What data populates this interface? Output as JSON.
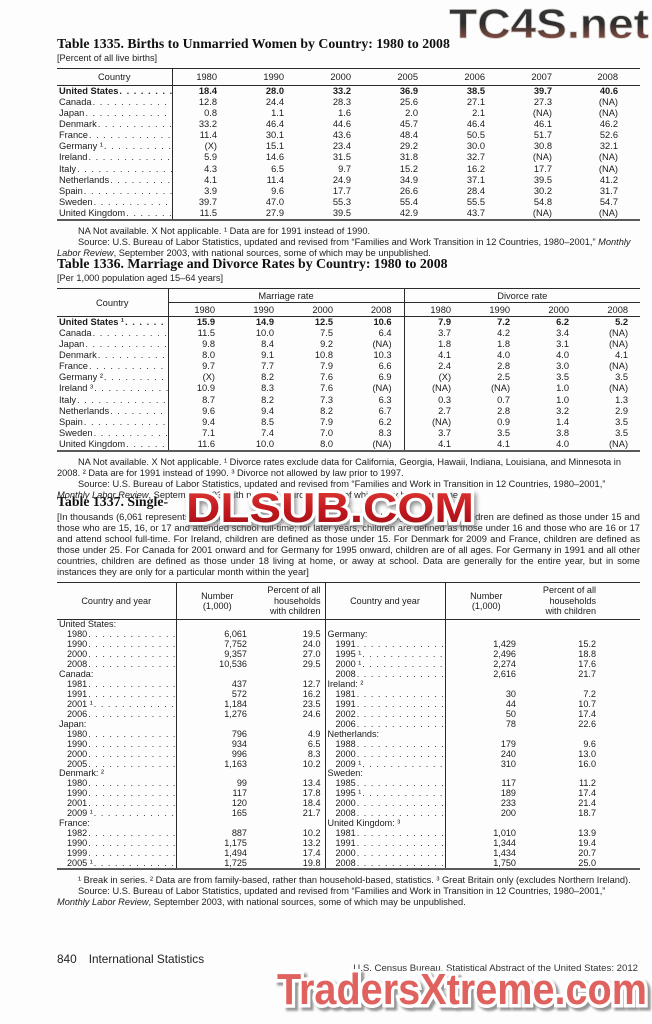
{
  "watermarks": {
    "top": "TC4S.net",
    "middle": "DLSUB.COM",
    "bottom": "TradersXtreme.com"
  },
  "footer": {
    "page_number": "840",
    "section": "International Statistics",
    "source_line": "U.S. Census Bureau, Statistical Abstract of the United States: 2012"
  },
  "table1335": {
    "title": "Table 1335. Births to Unmarried Women by Country: 1980 to 2008",
    "bracket": "[Percent of all live births]",
    "country_header": "Country",
    "years": [
      "1980",
      "1990",
      "2000",
      "2005",
      "2006",
      "2007",
      "2008"
    ],
    "rows": [
      {
        "country": "United States",
        "bold": true,
        "values": [
          "18.4",
          "28.0",
          "33.2",
          "36.9",
          "38.5",
          "39.7",
          "40.6"
        ]
      },
      {
        "country": "Canada",
        "values": [
          "12.8",
          "24.4",
          "28.3",
          "25.6",
          "27.1",
          "27.3",
          "(NA)"
        ]
      },
      {
        "country": "Japan",
        "values": [
          "0.8",
          "1.1",
          "1.6",
          "2.0",
          "2.1",
          "(NA)",
          "(NA)"
        ]
      },
      {
        "country": "Denmark",
        "values": [
          "33.2",
          "46.4",
          "44.6",
          "45.7",
          "46.4",
          "46.1",
          "46.2"
        ]
      },
      {
        "country": "France",
        "values": [
          "11.4",
          "30.1",
          "43.6",
          "48.4",
          "50.5",
          "51.7",
          "52.6"
        ]
      },
      {
        "country": "Germany ¹",
        "values": [
          "(X)",
          "15.1",
          "23.4",
          "29.2",
          "30.0",
          "30.8",
          "32.1"
        ]
      },
      {
        "country": "Ireland",
        "values": [
          "5.9",
          "14.6",
          "31.5",
          "31.8",
          "32.7",
          "(NA)",
          "(NA)"
        ]
      },
      {
        "country": "Italy",
        "values": [
          "4.3",
          "6.5",
          "9.7",
          "15.2",
          "16.2",
          "17.7",
          "(NA)"
        ]
      },
      {
        "country": "Netherlands",
        "values": [
          "4.1",
          "11.4",
          "24.9",
          "34.9",
          "37.1",
          "39.5",
          "41.2"
        ]
      },
      {
        "country": "Spain",
        "values": [
          "3.9",
          "9.6",
          "17.7",
          "26.6",
          "28.4",
          "30.2",
          "31.7"
        ]
      },
      {
        "country": "Sweden",
        "values": [
          "39.7",
          "47.0",
          "55.3",
          "55.4",
          "55.5",
          "54.8",
          "54.7"
        ]
      },
      {
        "country": "United Kingdom",
        "values": [
          "11.5",
          "27.9",
          "39.5",
          "42.9",
          "43.7",
          "(NA)",
          "(NA)"
        ]
      }
    ],
    "note1": [
      {
        "t": "NA Not available. X Not applicable. ¹ Data are for 1991 instead of 1990."
      }
    ],
    "note2": [
      {
        "t": "Source: U.S. Bureau of Labor Statistics, updated and revised from “Families and Work Transition in 12 Countries, 1980–2001,” "
      },
      {
        "t": "Monthly Labor Review",
        "i": true
      },
      {
        "t": ", September 2003, with national sources, some of which may be unpublished."
      }
    ]
  },
  "table1336": {
    "title": "Table 1336. Marriage and Divorce Rates by Country: 1980 to 2008",
    "bracket": "[Per 1,000 population aged 15–64 years]",
    "country_header": "Country",
    "group1": "Marriage rate",
    "group2": "Divorce rate",
    "years": [
      "1980",
      "1990",
      "2000",
      "2008"
    ],
    "rows": [
      {
        "country": "United States ¹",
        "bold": true,
        "marriage": [
          "15.9",
          "14.9",
          "12.5",
          "10.6"
        ],
        "divorce": [
          "7.9",
          "7.2",
          "6.2",
          "5.2"
        ]
      },
      {
        "country": "Canada",
        "marriage": [
          "11.5",
          "10.0",
          "7.5",
          "6.4"
        ],
        "divorce": [
          "3.7",
          "4.2",
          "3.4",
          "(NA)"
        ]
      },
      {
        "country": "Japan",
        "marriage": [
          "9.8",
          "8.4",
          "9.2",
          "(NA)"
        ],
        "divorce": [
          "1.8",
          "1.8",
          "3.1",
          "(NA)"
        ]
      },
      {
        "country": "Denmark",
        "marriage": [
          "8.0",
          "9.1",
          "10.8",
          "10.3"
        ],
        "divorce": [
          "4.1",
          "4.0",
          "4.0",
          "4.1"
        ]
      },
      {
        "country": "France",
        "marriage": [
          "9.7",
          "7.7",
          "7.9",
          "6.6"
        ],
        "divorce": [
          "2.4",
          "2.8",
          "3.0",
          "(NA)"
        ]
      },
      {
        "country": "Germany ²",
        "marriage": [
          "(X)",
          "8.2",
          "7.6",
          "6.9"
        ],
        "divorce": [
          "(X)",
          "2.5",
          "3.5",
          "3.5"
        ]
      },
      {
        "country": "Ireland ³",
        "marriage": [
          "10.9",
          "8.3",
          "7.6",
          "(NA)"
        ],
        "divorce": [
          "(NA)",
          "(NA)",
          "1.0",
          "(NA)"
        ]
      },
      {
        "country": "Italy",
        "marriage": [
          "8.7",
          "8.2",
          "7.3",
          "6.3"
        ],
        "divorce": [
          "0.3",
          "0.7",
          "1.0",
          "1.3"
        ]
      },
      {
        "country": "Netherlands",
        "marriage": [
          "9.6",
          "9.4",
          "8.2",
          "6.7"
        ],
        "divorce": [
          "2.7",
          "2.8",
          "3.2",
          "2.9"
        ]
      },
      {
        "country": "Spain",
        "marriage": [
          "9.4",
          "8.5",
          "7.9",
          "6.2"
        ],
        "divorce": [
          "(NA)",
          "0.9",
          "1.4",
          "3.5"
        ]
      },
      {
        "country": "Sweden",
        "marriage": [
          "7.1",
          "7.4",
          "7.0",
          "8.3"
        ],
        "divorce": [
          "3.7",
          "3.5",
          "3.8",
          "3.5"
        ]
      },
      {
        "country": "United Kingdom",
        "marriage": [
          "11.6",
          "10.0",
          "8.0",
          "(NA)"
        ],
        "divorce": [
          "4.1",
          "4.1",
          "4.0",
          "(NA)"
        ]
      }
    ],
    "note1": [
      {
        "t": "NA Not available. X Not applicable. ¹ Divorce rates exclude data for California, Georgia, Hawaii, Indiana, Louisiana, and Minnesota in 2008. ² Data are for 1991 instead of 1990. ³ Divorce not allowed by law prior to 1997."
      }
    ],
    "note2": [
      {
        "t": "Source: U.S. Bureau of Labor Statistics, updated and revised from “Families and Work in Transition in 12 Countries, 1980–2001,” "
      },
      {
        "t": "Monthly Labor Review",
        "i": true
      },
      {
        "t": ", September 2003, with national sources, some of which may be unpublished."
      }
    ]
  },
  "table1337": {
    "title_visible": "Table 1337. Single-",
    "intro": "[In thousands (6,061 represents 6,061,000), except for percent. For the United Kingdom in 1981, children are defined as those under 15 and those who are 15, 16, or 17 and attended school full-time; for later years, children are defined as those under 16 and those who are 16 or 17 and attend school full-time. For Ireland, children are defined as those under 15. For Denmark for 2009 and France, children are defined as those under 25. For Canada for 2001 onward and for Germany for 1995 onward, children are of all ages. For Germany in 1991 and all other countries, children are defined as those under 18 living at home, or away  at school. Data are generally for the entire year, but in some instances they are only for a particular month within the year]",
    "country_header": "Country and year",
    "number_header": "Number\n(1,000)",
    "pct_header": "Percent of all\nhouseholds\nwith children",
    "left": [
      {
        "label": "United States:",
        "group": true
      },
      {
        "label": "1980",
        "number": "6,061",
        "pct": "19.5"
      },
      {
        "label": "1990",
        "number": "7,752",
        "pct": "24.0"
      },
      {
        "label": "2000",
        "number": "9,357",
        "pct": "27.0"
      },
      {
        "label": "2008",
        "number": "10,536",
        "pct": "29.5"
      },
      {
        "label": "Canada:",
        "group": true
      },
      {
        "label": "1981",
        "number": "437",
        "pct": "12.7"
      },
      {
        "label": "1991",
        "number": "572",
        "pct": "16.2"
      },
      {
        "label": "2001 ¹",
        "number": "1,184",
        "pct": "23.5"
      },
      {
        "label": "2006",
        "number": "1,276",
        "pct": "24.6"
      },
      {
        "label": "Japan:",
        "group": true
      },
      {
        "label": "1980",
        "number": "796",
        "pct": "4.9"
      },
      {
        "label": "1990",
        "number": "934",
        "pct": "6.5"
      },
      {
        "label": "2000",
        "number": "996",
        "pct": "8.3"
      },
      {
        "label": "2005",
        "number": "1,163",
        "pct": "10.2"
      },
      {
        "label": "Denmark: ²",
        "group": true
      },
      {
        "label": "1980",
        "number": "99",
        "pct": "13.4"
      },
      {
        "label": "1990",
        "number": "117",
        "pct": "17.8"
      },
      {
        "label": "2001",
        "number": "120",
        "pct": "18.4"
      },
      {
        "label": "2009 ¹",
        "number": "165",
        "pct": "21.7"
      },
      {
        "label": "France:",
        "group": true
      },
      {
        "label": "1982",
        "number": "887",
        "pct": "10.2"
      },
      {
        "label": "1990",
        "number": "1,175",
        "pct": "13.2"
      },
      {
        "label": "1999",
        "number": "1,494",
        "pct": "17.4"
      },
      {
        "label": "2005 ¹",
        "number": "1,725",
        "pct": "19.8"
      }
    ],
    "right": [
      {
        "blank": true
      },
      {
        "label": "Germany:",
        "group": true
      },
      {
        "label": "1991",
        "number": "1,429",
        "pct": "15.2"
      },
      {
        "label": "1995 ¹",
        "number": "2,496",
        "pct": "18.8"
      },
      {
        "label": "2000 ¹",
        "number": "2,274",
        "pct": "17.6"
      },
      {
        "label": "2008",
        "number": "2,616",
        "pct": "21.7"
      },
      {
        "label": "Ireland: ²",
        "group": true
      },
      {
        "label": "1981",
        "number": "30",
        "pct": "7.2"
      },
      {
        "label": "1991",
        "number": "44",
        "pct": "10.7"
      },
      {
        "label": "2002",
        "number": "50",
        "pct": "17.4"
      },
      {
        "label": "2006",
        "number": "78",
        "pct": "22.6"
      },
      {
        "label": "Netherlands:",
        "group": true
      },
      {
        "label": "1988",
        "number": "179",
        "pct": "9.6"
      },
      {
        "label": "2000",
        "number": "240",
        "pct": "13.0"
      },
      {
        "label": "2009 ¹",
        "number": "310",
        "pct": "16.0"
      },
      {
        "label": "Sweden:",
        "group": true
      },
      {
        "label": "1985",
        "number": "117",
        "pct": "11.2"
      },
      {
        "label": "1995 ¹",
        "number": "189",
        "pct": "17.4"
      },
      {
        "label": "2000",
        "number": "233",
        "pct": "21.4"
      },
      {
        "label": "2008",
        "number": "200",
        "pct": "18.7"
      },
      {
        "label": "United Kingdom: ³",
        "group": true
      },
      {
        "label": "1981",
        "number": "1,010",
        "pct": "13.9"
      },
      {
        "label": "1991",
        "number": "1,344",
        "pct": "19.4"
      },
      {
        "label": "2000",
        "number": "1,434",
        "pct": "20.7"
      },
      {
        "label": "2008",
        "number": "1,750",
        "pct": "25.0"
      }
    ],
    "note1": [
      {
        "t": "¹ Break in series. ² Data are from family-based, rather than household-based, statistics. ³ Great Britain only (excludes Northern Ireland)."
      }
    ],
    "note2": [
      {
        "t": "Source: U.S. Bureau of Labor Statistics, updated and revised from “Families and Work in Transition in 12 Countries, 1980–2001,” "
      },
      {
        "t": "Monthly Labor Review",
        "i": true
      },
      {
        "t": ", September 2003, with national sources, some of which may be unpublished."
      }
    ]
  },
  "colors": {
    "watermark_red": "#c2181e",
    "watermark_salmon": "#e0625e",
    "rule_dark": "#2a2a2a"
  }
}
